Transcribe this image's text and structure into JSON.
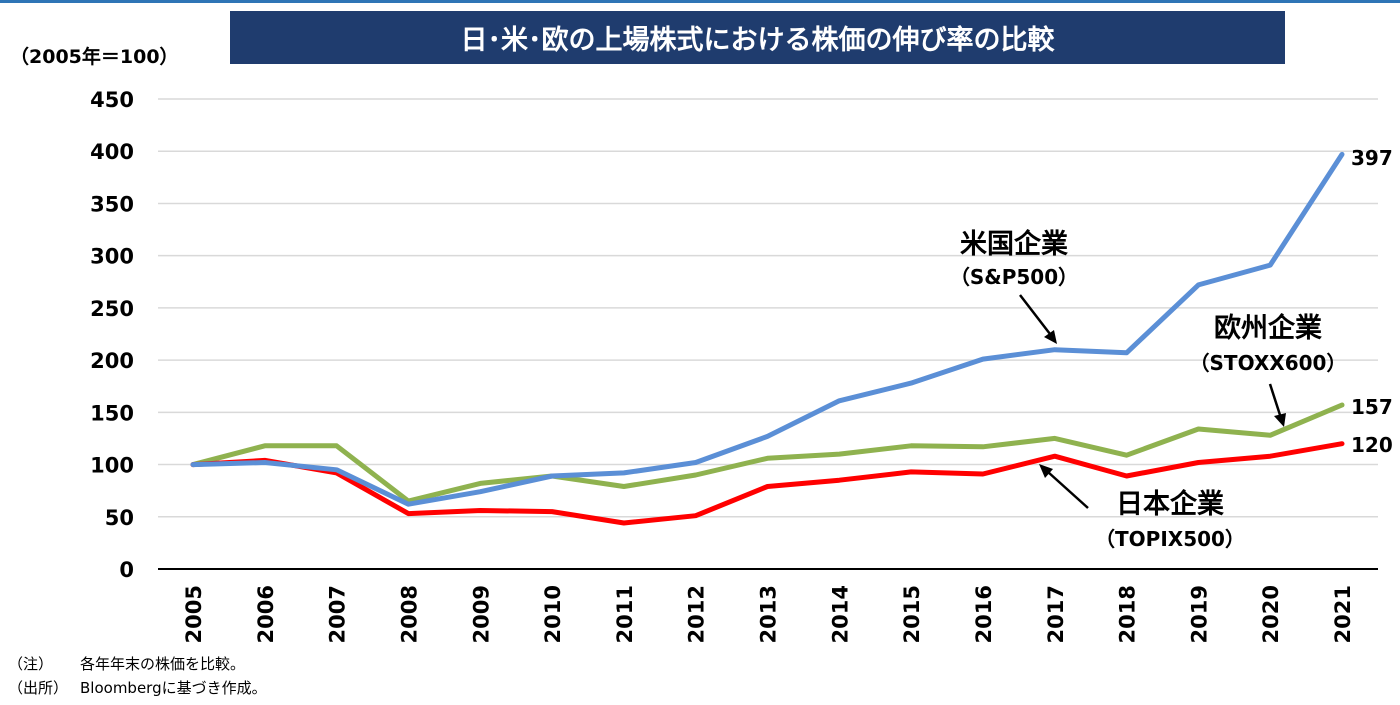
{
  "title": "日･米･欧の上場株式における株価の伸び率の比較",
  "unit_label": "（2005年＝100）",
  "notes": [
    {
      "key": "（注）",
      "text": "各年年末の株価を比較。"
    },
    {
      "key": "（出所）",
      "text": "Bloombergに基づき作成。"
    }
  ],
  "chart_data": {
    "type": "line",
    "x": [
      "2005",
      "2006",
      "2007",
      "2008",
      "2009",
      "2010",
      "2011",
      "2012",
      "2013",
      "2014",
      "2015",
      "2016",
      "2017",
      "2018",
      "2019",
      "2020",
      "2021"
    ],
    "ylim": [
      0,
      450
    ],
    "yticks": [
      0,
      50,
      100,
      150,
      200,
      250,
      300,
      350,
      400,
      450
    ],
    "grid": true,
    "series": [
      {
        "name": "米国企業",
        "sub": "（S&P500）",
        "color": "#5b8fd6",
        "end_label": "397",
        "values": [
          100,
          102,
          95,
          62,
          74,
          89,
          92,
          102,
          127,
          161,
          178,
          201,
          210,
          207,
          272,
          291,
          397
        ]
      },
      {
        "name": "欧州企業",
        "sub": "（STOXX600）",
        "color": "#8fb24f",
        "end_label": "157",
        "values": [
          100,
          118,
          118,
          65,
          82,
          89,
          79,
          90,
          106,
          110,
          118,
          117,
          125,
          109,
          134,
          128,
          157
        ]
      },
      {
        "name": "日本企業",
        "sub": "（TOPIX500）",
        "color": "#ff0000",
        "end_label": "120",
        "values": [
          100,
          104,
          92,
          53,
          56,
          55,
          44,
          51,
          79,
          85,
          93,
          91,
          108,
          89,
          102,
          108,
          120
        ]
      }
    ]
  }
}
